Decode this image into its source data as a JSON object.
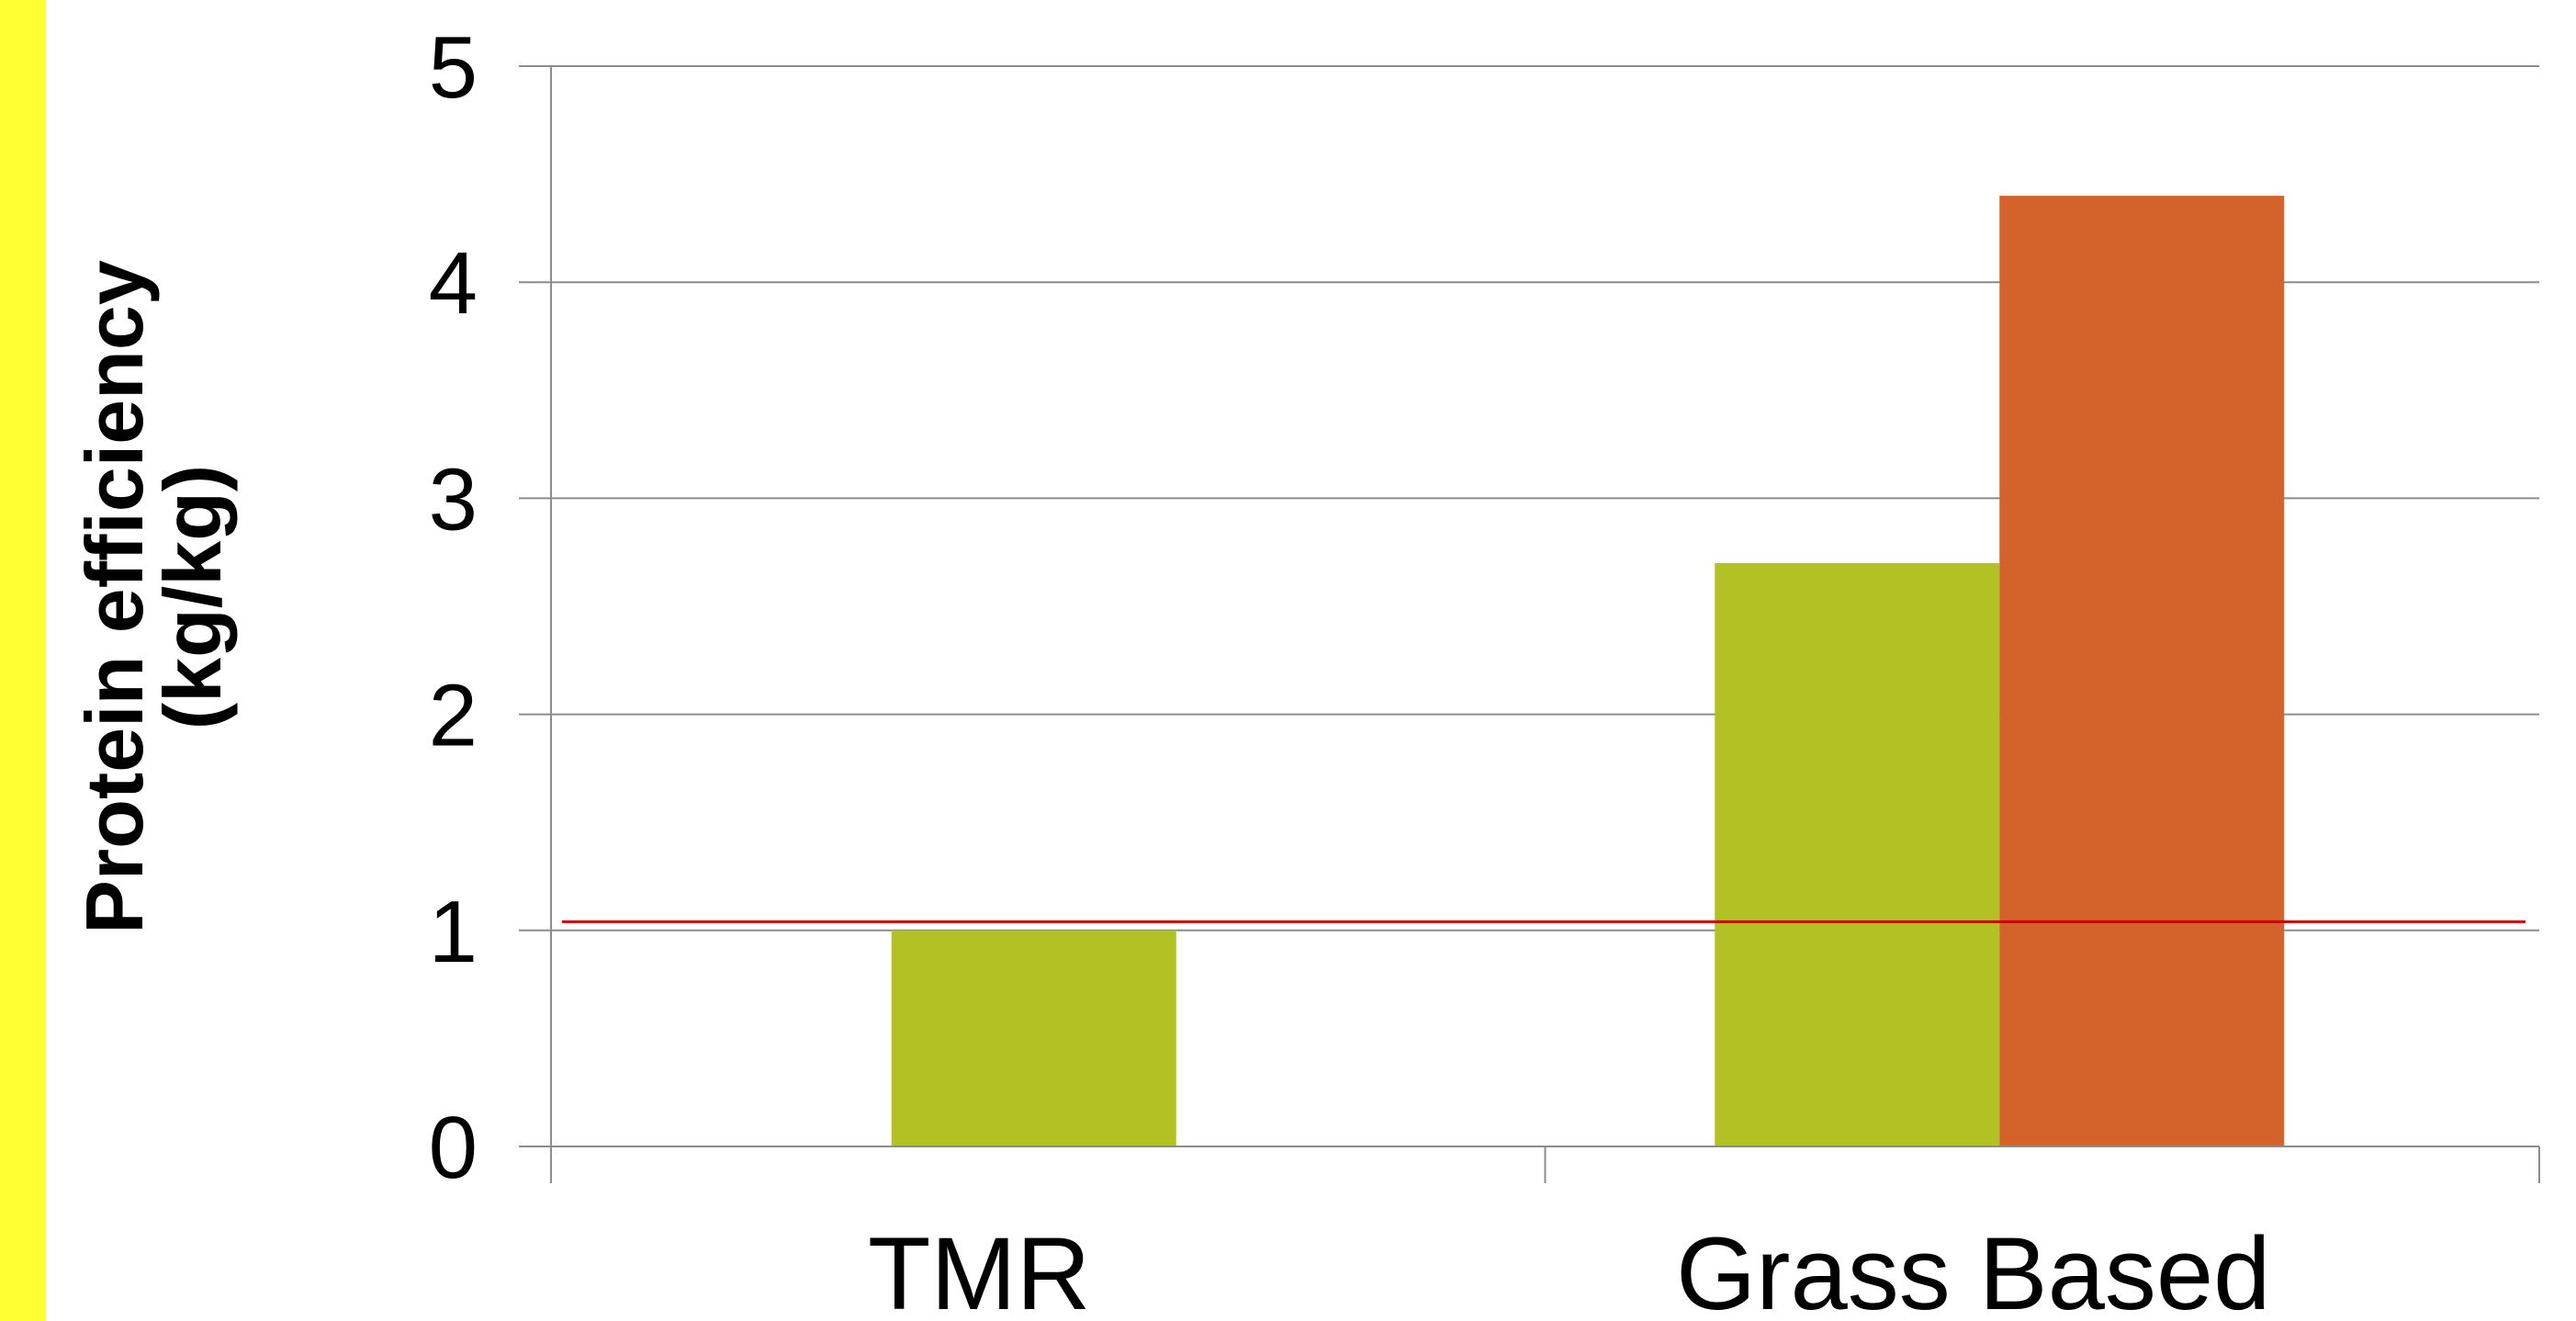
{
  "chart_data": {
    "type": "bar",
    "categories": [
      "TMR",
      "Grass Based"
    ],
    "series": [
      {
        "color": "#b2c225",
        "values": [
          1.0,
          2.7
        ]
      },
      {
        "color": "#d4622b",
        "values": [
          null,
          4.4
        ]
      }
    ],
    "ylabel": [
      "Protein efficiency",
      "(kg/kg)"
    ],
    "xlabel": "",
    "ylim": [
      0,
      5
    ],
    "yticks": [
      "0",
      "1",
      "2",
      "3",
      "4",
      "5"
    ],
    "reference_line": {
      "value": 1.04,
      "color": "#cc0000"
    },
    "grid": true,
    "legend": "none"
  },
  "colors": {
    "stripe": "#ffff33",
    "gridline": "#8c8c8c"
  }
}
